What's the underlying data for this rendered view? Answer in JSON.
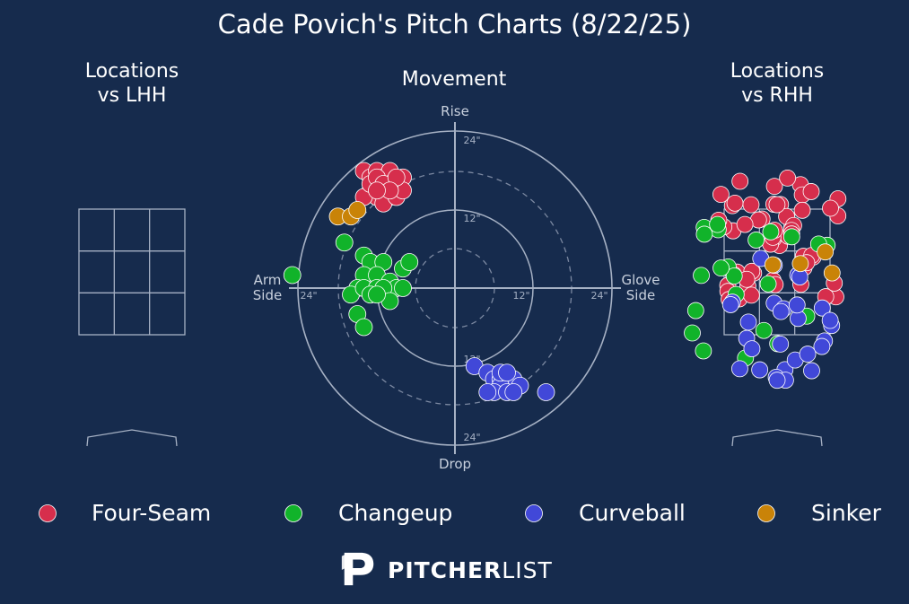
{
  "chart_title": "Cade Povich's Pitch Charts (8/22/25)",
  "colors": {
    "background": "#162b4d",
    "Four-Seam": "#d62e4c",
    "Changeup": "#11b32a",
    "Curveball": "#4148d8",
    "Sinker": "#c98308",
    "grid": "#a6b1c4"
  },
  "logo": {
    "bold": "PITCHER",
    "light": "LIST",
    "icon": "pitcherlist-p-icon"
  },
  "chart_data": [
    {
      "type": "scatter",
      "title": "Locations\nvs LHH",
      "title_lines": [
        "Locations",
        "vs LHH"
      ],
      "grid": "strike-zone 3x3",
      "points": []
    },
    {
      "type": "scatter",
      "subtype": "polar movement",
      "title": "Movement",
      "labels": {
        "top": "Rise",
        "bottom": "Drop",
        "left_1": "Arm",
        "left_2": "Side",
        "right_1": "Glove",
        "right_2": "Side"
      },
      "ring_ticks": [
        "12\"",
        "24\""
      ],
      "units": "inches",
      "xlim": [
        -24,
        24
      ],
      "ylim": [
        -24,
        24
      ],
      "series": [
        {
          "name": "Four-Seam",
          "points": [
            [
              -14,
              18
            ],
            [
              -13,
              17
            ],
            [
              -12,
              18
            ],
            [
              -11,
              17
            ],
            [
              -10,
              17
            ],
            [
              -9,
              16
            ],
            [
              -12,
              16
            ],
            [
              -11,
              15
            ],
            [
              -10,
              14
            ],
            [
              -9,
              15
            ],
            [
              -13,
              15
            ],
            [
              -12,
              14
            ],
            [
              -14,
              14
            ],
            [
              -8,
              17
            ],
            [
              -10,
              18
            ],
            [
              -11,
              13
            ],
            [
              -9,
              14
            ],
            [
              -13,
              16
            ],
            [
              -8,
              15
            ],
            [
              -12,
              17
            ],
            [
              -10,
              16
            ],
            [
              -11,
              16
            ],
            [
              -9,
              17
            ],
            [
              -10,
              15
            ],
            [
              -12,
              15
            ]
          ]
        },
        {
          "name": "Changeup",
          "points": [
            [
              -25,
              2
            ],
            [
              -17,
              7
            ],
            [
              -14,
              5
            ],
            [
              -13,
              4
            ],
            [
              -11,
              4
            ],
            [
              -8,
              3
            ],
            [
              -7,
              4
            ],
            [
              -14,
              2
            ],
            [
              -12,
              2
            ],
            [
              -15,
              0
            ],
            [
              -16,
              -1
            ],
            [
              -14,
              0
            ],
            [
              -12,
              0
            ],
            [
              -10,
              1
            ],
            [
              -9,
              0
            ],
            [
              -8,
              0
            ],
            [
              -11,
              0
            ],
            [
              -13,
              -1
            ],
            [
              -15,
              -4
            ],
            [
              -14,
              -6
            ],
            [
              -10,
              -2
            ],
            [
              -12,
              -1
            ]
          ]
        },
        {
          "name": "Curveball",
          "points": [
            [
              3,
              -12
            ],
            [
              5,
              -13
            ],
            [
              6,
              -14
            ],
            [
              7,
              -14
            ],
            [
              8,
              -15
            ],
            [
              9,
              -14
            ],
            [
              7,
              -15
            ],
            [
              6,
              -16
            ],
            [
              8,
              -16
            ],
            [
              10,
              -15
            ],
            [
              9,
              -16
            ],
            [
              7,
              -13
            ],
            [
              8,
              -13
            ],
            [
              5,
              -16
            ],
            [
              14,
              -16
            ]
          ]
        },
        {
          "name": "Sinker",
          "points": [
            [
              -18,
              11
            ],
            [
              -16,
              11
            ],
            [
              -15,
              12
            ]
          ]
        }
      ]
    },
    {
      "type": "scatter",
      "title": "Locations\nvs RHH",
      "title_lines": [
        "Locations",
        "vs RHH"
      ],
      "grid": "strike-zone 3x3",
      "series": [
        {
          "name": "Four-Seam",
          "count": 56
        },
        {
          "name": "Changeup",
          "count": 22
        },
        {
          "name": "Curveball",
          "count": 29
        },
        {
          "name": "Sinker",
          "count": 4
        }
      ]
    }
  ],
  "legend": [
    {
      "name": "Four-Seam",
      "color": "#d62e4c"
    },
    {
      "name": "Changeup",
      "color": "#11b32a"
    },
    {
      "name": "Curveball",
      "color": "#4148d8"
    },
    {
      "name": "Sinker",
      "color": "#c98308"
    }
  ]
}
